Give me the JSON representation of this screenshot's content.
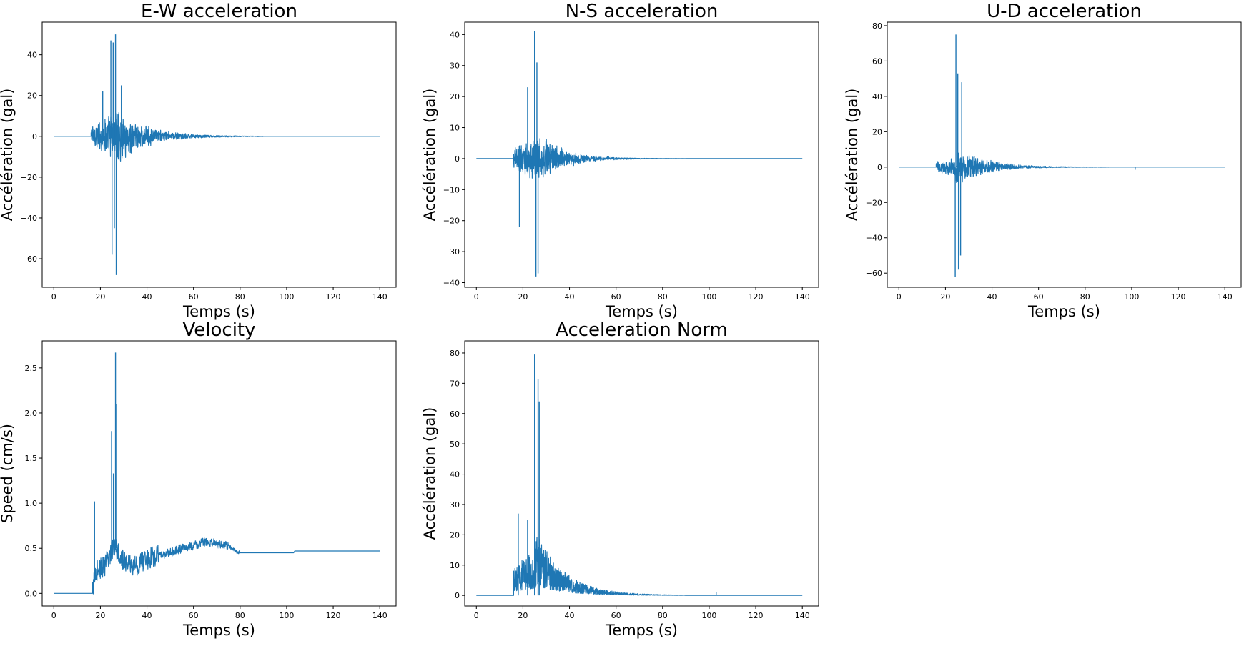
{
  "colors": {
    "series": "#1f77b4",
    "axes": "#000000",
    "background": "#ffffff"
  },
  "chart_data": [
    {
      "type": "line",
      "title": "E-W acceleration",
      "xlabel": "Temps (s)",
      "ylabel": "Accélération (gal)",
      "xlim": [
        -5,
        147
      ],
      "ylim": [
        -74,
        56
      ],
      "xticks": [
        0,
        20,
        40,
        60,
        80,
        100,
        120,
        140
      ],
      "yticks": [
        -60,
        -40,
        -20,
        0,
        20,
        40
      ],
      "signal": {
        "kind": "oscillation",
        "t_start": 0,
        "t_end": 140,
        "onset": 16,
        "peak_time": 26,
        "envelope_pre": 13,
        "envelope_post": 16,
        "decay_s": 13,
        "spikes": [
          [
            24.5,
            47
          ],
          [
            25.5,
            46
          ],
          [
            26.5,
            50
          ],
          [
            25,
            -58
          ],
          [
            26,
            -45
          ],
          [
            26.8,
            -68
          ],
          [
            21,
            22
          ],
          [
            29,
            25
          ]
        ]
      }
    },
    {
      "type": "line",
      "title": "N-S acceleration",
      "xlabel": "Temps (s)",
      "ylabel": "Accélération (gal)",
      "xlim": [
        -5,
        147
      ],
      "ylim": [
        -41.5,
        44
      ],
      "xticks": [
        0,
        20,
        40,
        60,
        80,
        100,
        120,
        140
      ],
      "yticks": [
        -40,
        -30,
        -20,
        -10,
        0,
        10,
        20,
        30,
        40
      ],
      "signal": {
        "kind": "oscillation",
        "t_start": 0,
        "t_end": 140,
        "onset": 16,
        "peak_time": 25,
        "envelope_pre": 8,
        "envelope_post": 11,
        "decay_s": 11,
        "spikes": [
          [
            25,
            41
          ],
          [
            26,
            31
          ],
          [
            25.6,
            -38
          ],
          [
            26.5,
            -37
          ],
          [
            22,
            23
          ],
          [
            18.5,
            -22
          ]
        ]
      }
    },
    {
      "type": "line",
      "title": "U-D acceleration",
      "xlabel": "Temps (s)",
      "ylabel": "Accélération (gal)",
      "xlim": [
        -5,
        147
      ],
      "ylim": [
        -68,
        82
      ],
      "xticks": [
        0,
        20,
        40,
        60,
        80,
        100,
        120,
        140
      ],
      "yticks": [
        -60,
        -40,
        -20,
        0,
        20,
        40,
        60,
        80
      ],
      "signal": {
        "kind": "oscillation",
        "t_start": 0,
        "t_end": 140,
        "onset": 16,
        "peak_time": 24.5,
        "envelope_pre": 6,
        "envelope_post": 14,
        "decay_s": 12,
        "spikes": [
          [
            24.5,
            75
          ],
          [
            25.3,
            53
          ],
          [
            27,
            48
          ],
          [
            24.2,
            -62
          ],
          [
            25.6,
            -58
          ],
          [
            26.5,
            -50
          ],
          [
            101.5,
            -1.5
          ]
        ]
      }
    },
    {
      "type": "line",
      "title": "Velocity",
      "xlabel": "Temps (s)",
      "ylabel": "Speed (cm/s)",
      "xlim": [
        -5,
        147
      ],
      "ylim": [
        -0.14,
        2.8
      ],
      "xticks": [
        0,
        20,
        40,
        60,
        80,
        100,
        120,
        140
      ],
      "yticks": [
        0.0,
        0.5,
        1.0,
        1.5,
        2.0,
        2.5
      ],
      "signal": {
        "kind": "velocity",
        "t_start": 0,
        "t_end": 140,
        "onset": 16.5,
        "spikes": [
          [
            17.5,
            1.02
          ],
          [
            24.8,
            1.8
          ],
          [
            25.6,
            1.33
          ],
          [
            26.5,
            2.67
          ],
          [
            27,
            2.1
          ]
        ],
        "baseline": [
          [
            16.5,
            0.0
          ],
          [
            18,
            0.25
          ],
          [
            22,
            0.3
          ],
          [
            26,
            0.55
          ],
          [
            30,
            0.35
          ],
          [
            35,
            0.3
          ],
          [
            40,
            0.38
          ],
          [
            45,
            0.42
          ],
          [
            50,
            0.45
          ],
          [
            55,
            0.5
          ],
          [
            60,
            0.53
          ],
          [
            65,
            0.57
          ],
          [
            70,
            0.55
          ],
          [
            75,
            0.53
          ],
          [
            78,
            0.47
          ],
          [
            80,
            0.45
          ],
          [
            103,
            0.45
          ],
          [
            103.5,
            0.47
          ],
          [
            140,
            0.47
          ]
        ]
      }
    },
    {
      "type": "line",
      "title": "Acceleration Norm",
      "xlabel": "Temps (s)",
      "ylabel": "Accélération (gal)",
      "xlim": [
        -5,
        147
      ],
      "ylim": [
        -3.5,
        84
      ],
      "xticks": [
        0,
        20,
        40,
        60,
        80,
        100,
        120,
        140
      ],
      "yticks": [
        0,
        10,
        20,
        30,
        40,
        50,
        60,
        70,
        80
      ],
      "signal": {
        "kind": "norm",
        "t_start": 0,
        "t_end": 140,
        "onset": 16,
        "peak_time": 25.5,
        "envelope_pre": 16,
        "envelope_post": 22,
        "decay_s": 12,
        "spikes": [
          [
            25,
            79.5
          ],
          [
            26.5,
            71.5
          ],
          [
            27,
            64
          ],
          [
            18,
            27
          ],
          [
            22,
            25
          ],
          [
            103,
            1.2
          ]
        ]
      }
    }
  ]
}
